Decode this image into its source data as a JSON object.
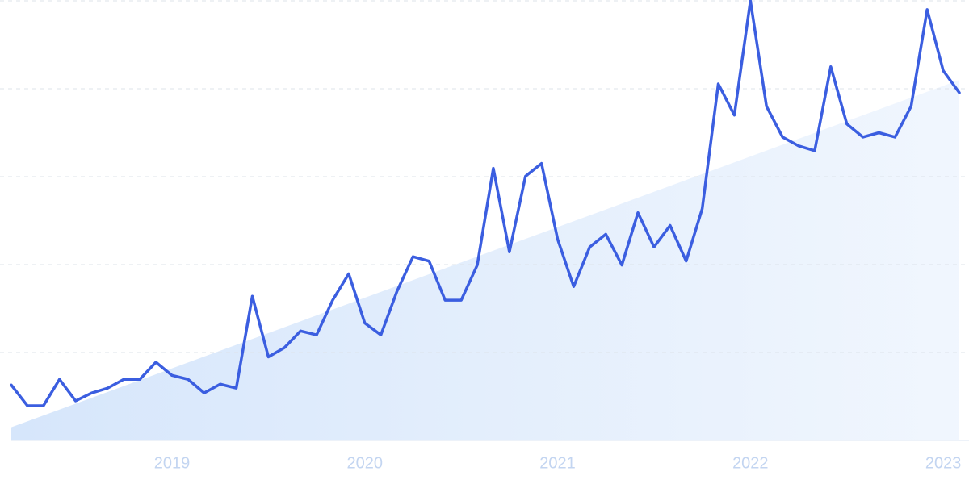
{
  "chart_data": {
    "type": "line",
    "categories": [
      null,
      null,
      null,
      null,
      null,
      null,
      null,
      null,
      null,
      null,
      "2019",
      null,
      null,
      null,
      null,
      null,
      null,
      null,
      null,
      null,
      null,
      null,
      "2020",
      null,
      null,
      null,
      null,
      null,
      null,
      null,
      null,
      null,
      null,
      null,
      "2021",
      null,
      null,
      null,
      null,
      null,
      null,
      null,
      null,
      null,
      null,
      null,
      "2022",
      null,
      null,
      null,
      null,
      null,
      null,
      null,
      null,
      null,
      null,
      null,
      "2023",
      null
    ],
    "values": [
      12.6,
      7.9,
      7.9,
      13.9,
      9,
      10.8,
      11.9,
      13.9,
      13.9,
      17.8,
      14.8,
      13.9,
      10.8,
      12.8,
      11.9,
      32.8,
      19,
      21.1,
      24.9,
      24,
      31.9,
      37.9,
      26.7,
      24,
      33.9,
      41.8,
      40.8,
      31.9,
      31.9,
      39.9,
      61.9,
      42.9,
      60.1,
      63,
      45.8,
      35,
      44,
      46.9,
      39.9,
      51.8,
      44,
      48.9,
      40.8,
      52.7,
      81.1,
      74,
      100,
      76,
      69,
      67,
      65.9,
      85,
      72,
      69,
      70,
      69,
      76,
      98,
      84.1,
      79.1
    ],
    "color": "#3b5ee0",
    "trend": [
      3,
      82
    ],
    "trend_color": "#d6e6fb",
    "ylim": [
      0,
      100
    ],
    "yticks": [
      0,
      20,
      40,
      60,
      80,
      100
    ],
    "grid": true
  }
}
